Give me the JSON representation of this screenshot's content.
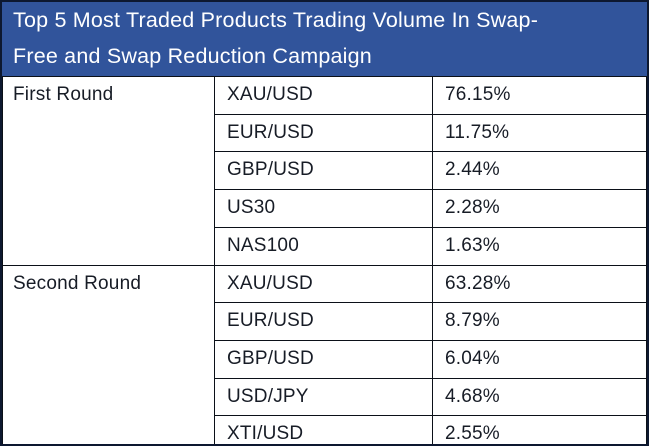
{
  "title": "Top 5 Most Traded Products Trading Volume In Swap-Free and Swap Reduction Campaign",
  "title_lines": [
    "Top 5 Most Traded Products Trading Volume In Swap-",
    "Free and Swap Reduction Campaign"
  ],
  "colors": {
    "header_bg": "#31549b",
    "header_text": "#ffffff",
    "outer_border": "#0d1830",
    "grid_line": "#0b1018",
    "cell_text": "#171c26",
    "cell_bg": "#ffffff"
  },
  "table": {
    "groups": [
      {
        "label": "First Round",
        "rows": [
          {
            "product": "XAU/USD",
            "volume": "76.15%"
          },
          {
            "product": "EUR/USD",
            "volume": "11.75%"
          },
          {
            "product": "GBP/USD",
            "volume": "2.44%"
          },
          {
            "product": "US30",
            "volume": "2.28%"
          },
          {
            "product": "NAS100",
            "volume": "1.63%"
          }
        ]
      },
      {
        "label": "Second Round",
        "rows": [
          {
            "product": "XAU/USD",
            "volume": "63.28%"
          },
          {
            "product": "EUR/USD",
            "volume": "8.79%"
          },
          {
            "product": "GBP/USD",
            "volume": "6.04%"
          },
          {
            "product": "USD/JPY",
            "volume": "4.68%"
          },
          {
            "product": "XTI/USD",
            "volume": "2.55%"
          }
        ]
      }
    ]
  },
  "chart_data": {
    "type": "table",
    "title": "Top 5 Most Traded Products Trading Volume In Swap-Free and Swap Reduction Campaign",
    "rows": [
      [
        "First Round",
        "XAU/USD",
        "76.15%"
      ],
      [
        "First Round",
        "EUR/USD",
        "11.75%"
      ],
      [
        "First Round",
        "GBP/USD",
        "2.44%"
      ],
      [
        "First Round",
        "US30",
        "2.28%"
      ],
      [
        "First Round",
        "NAS100",
        "1.63%"
      ],
      [
        "Second Round",
        "XAU/USD",
        "63.28%"
      ],
      [
        "Second Round",
        "EUR/USD",
        "8.79%"
      ],
      [
        "Second Round",
        "GBP/USD",
        "6.04%"
      ],
      [
        "Second Round",
        "USD/JPY",
        "4.68%"
      ],
      [
        "Second Round",
        "XTI/USD",
        "2.55%"
      ]
    ]
  }
}
